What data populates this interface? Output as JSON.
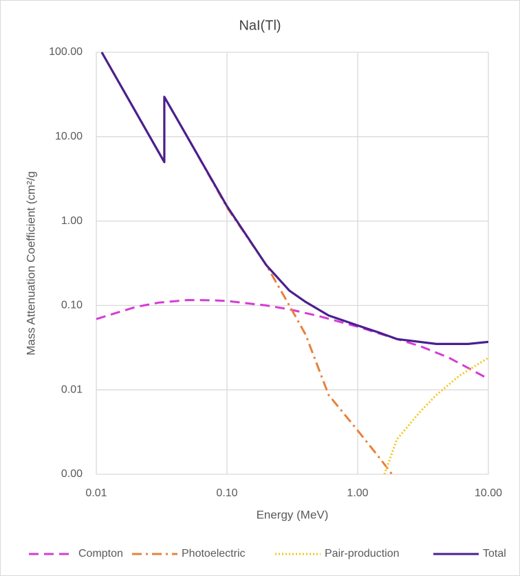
{
  "chart_data": {
    "type": "line",
    "title": "NaI(Tl)",
    "x_label": "Energy (MeV)",
    "y_label": "Mass Attenuation Coefficient (cm²/g",
    "log_x": true,
    "log_y": true,
    "grid": true,
    "legend_position": "bottom",
    "xlim": [
      0.01,
      10
    ],
    "xticks": [
      0.01,
      {
        "value": 0.1,
        "label": "0.10"
      },
      {
        "value": 1,
        "label": "1.00"
      },
      {
        "value": 10,
        "label": "10.00"
      }
    ],
    "ylim": [
      0.001,
      100
    ],
    "yticks": [
      {
        "value": 0.001,
        "label": "0.00"
      },
      0.01,
      {
        "value": 0.1,
        "label": "0.10"
      },
      {
        "value": 1,
        "label": "1.00"
      },
      {
        "value": 10,
        "label": "10.00"
      },
      {
        "value": 100,
        "label": "100.00"
      }
    ],
    "series": [
      {
        "name": "Compton",
        "color": "#d63bd6",
        "dash": "dashed",
        "x": [
          0.01,
          0.02,
          0.03,
          0.05,
          0.08,
          0.1,
          0.2,
          0.3,
          0.5,
          1,
          2,
          3,
          5,
          10
        ],
        "values": [
          0.069,
          0.096,
          0.108,
          0.116,
          0.115,
          0.113,
          0.1,
          0.09,
          0.075,
          0.056,
          0.04,
          0.033,
          0.024,
          0.0135
        ]
      },
      {
        "name": "Photoelectric",
        "color": "#e8803a",
        "dash": "dash-dot",
        "x": [
          0.011,
          0.033169,
          0.033169,
          0.05,
          0.1,
          0.2,
          0.3,
          0.4,
          0.6,
          1,
          1.5,
          1.83
        ],
        "values": [
          100,
          5,
          29.6,
          9.8,
          1.45,
          0.3,
          0.1,
          0.045,
          0.0087,
          0.0033,
          0.0015,
          0.001
        ]
      },
      {
        "name": "Pair-production",
        "color": "#f5c518",
        "dash": "dotted",
        "x": [
          1.6,
          2,
          3,
          4,
          6,
          10
        ],
        "values": [
          0.001,
          0.0026,
          0.0055,
          0.0087,
          0.0147,
          0.024
        ]
      },
      {
        "name": "Total",
        "color": "#4b1f8f",
        "dash": "solid",
        "x": [
          0.011,
          0.033169,
          0.033169,
          0.05,
          0.1,
          0.2,
          0.3,
          0.4,
          0.6,
          1,
          1.5,
          2,
          4,
          7,
          10
        ],
        "values": [
          100,
          5,
          29.6,
          9.8,
          1.5,
          0.3,
          0.15,
          0.11,
          0.076,
          0.058,
          0.047,
          0.04,
          0.035,
          0.035,
          0.037
        ]
      }
    ]
  }
}
